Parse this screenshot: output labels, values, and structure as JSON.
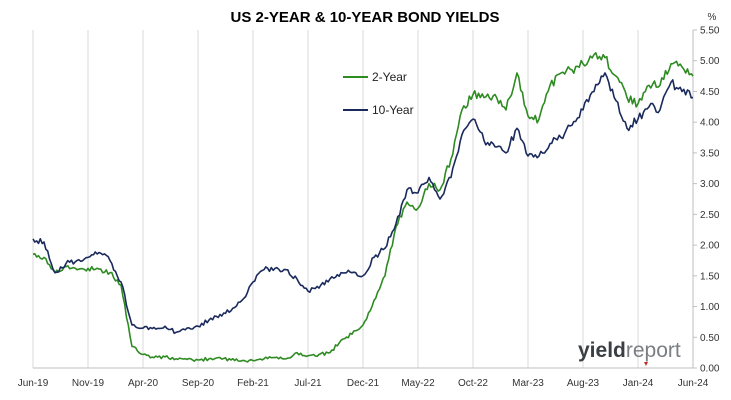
{
  "chart_data": {
    "type": "line",
    "title": "US 2-YEAR & 10-YEAR BOND YIELDS",
    "unit_label": "%",
    "xlabel": "",
    "ylabel": "",
    "y_axis_position": "right",
    "ylim": [
      0,
      5.5
    ],
    "yticks": [
      "0.00",
      "0.50",
      "1.00",
      "1.50",
      "2.00",
      "2.50",
      "3.00",
      "3.50",
      "4.00",
      "4.50",
      "5.00",
      "5.50"
    ],
    "xlim": [
      "2019-06",
      "2024-06"
    ],
    "xticks": [
      "Jun-19",
      "Nov-19",
      "Apr-20",
      "Sep-20",
      "Feb-21",
      "Jul-21",
      "Dec-21",
      "May-22",
      "Oct-22",
      "Mar-23",
      "Aug-23",
      "Jan-24",
      "Jun-24"
    ],
    "grid": "vertical",
    "legend_position": "top-center",
    "series": [
      {
        "name": "2-Year",
        "color": "#2e8b22",
        "x": [
          "2019-06",
          "2019-07",
          "2019-08",
          "2019-09",
          "2019-10",
          "2019-11",
          "2019-12",
          "2020-01",
          "2020-02",
          "2020-03",
          "2020-04",
          "2020-05",
          "2020-06",
          "2020-07",
          "2020-08",
          "2020-09",
          "2020-10",
          "2020-11",
          "2020-12",
          "2021-01",
          "2021-02",
          "2021-03",
          "2021-04",
          "2021-05",
          "2021-06",
          "2021-07",
          "2021-08",
          "2021-09",
          "2021-10",
          "2021-11",
          "2021-12",
          "2022-01",
          "2022-02",
          "2022-03",
          "2022-04",
          "2022-05",
          "2022-06",
          "2022-07",
          "2022-08",
          "2022-09",
          "2022-10",
          "2022-11",
          "2022-12",
          "2023-01",
          "2023-02",
          "2023-03",
          "2023-04",
          "2023-05",
          "2023-06",
          "2023-07",
          "2023-08",
          "2023-09",
          "2023-10",
          "2023-11",
          "2023-12",
          "2024-01",
          "2024-02",
          "2024-03",
          "2024-04",
          "2024-05",
          "2024-06"
        ],
        "values": [
          1.85,
          1.8,
          1.55,
          1.65,
          1.6,
          1.62,
          1.61,
          1.55,
          1.35,
          0.35,
          0.22,
          0.17,
          0.18,
          0.15,
          0.14,
          0.13,
          0.15,
          0.17,
          0.13,
          0.12,
          0.12,
          0.15,
          0.17,
          0.15,
          0.25,
          0.2,
          0.22,
          0.25,
          0.45,
          0.55,
          0.7,
          1.1,
          1.5,
          2.3,
          2.7,
          2.6,
          3.0,
          2.9,
          3.4,
          4.2,
          4.45,
          4.4,
          4.45,
          4.2,
          4.8,
          4.1,
          4.05,
          4.6,
          4.8,
          4.85,
          4.95,
          5.1,
          5.05,
          4.75,
          4.4,
          4.3,
          4.6,
          4.6,
          4.95,
          4.9,
          4.75
        ]
      },
      {
        "name": "10-Year",
        "color": "#1a2a5c",
        "x": [
          "2019-06",
          "2019-07",
          "2019-08",
          "2019-09",
          "2019-10",
          "2019-11",
          "2019-12",
          "2020-01",
          "2020-02",
          "2020-03",
          "2020-04",
          "2020-05",
          "2020-06",
          "2020-07",
          "2020-08",
          "2020-09",
          "2020-10",
          "2020-11",
          "2020-12",
          "2021-01",
          "2021-02",
          "2021-03",
          "2021-04",
          "2021-05",
          "2021-06",
          "2021-07",
          "2021-08",
          "2021-09",
          "2021-10",
          "2021-11",
          "2021-12",
          "2022-01",
          "2022-02",
          "2022-03",
          "2022-04",
          "2022-05",
          "2022-06",
          "2022-07",
          "2022-08",
          "2022-09",
          "2022-10",
          "2022-11",
          "2022-12",
          "2023-01",
          "2023-02",
          "2023-03",
          "2023-04",
          "2023-05",
          "2023-06",
          "2023-07",
          "2023-08",
          "2023-09",
          "2023-10",
          "2023-11",
          "2023-12",
          "2024-01",
          "2024-02",
          "2024-03",
          "2024-04",
          "2024-05",
          "2024-06"
        ],
        "values": [
          2.1,
          2.05,
          1.55,
          1.7,
          1.75,
          1.8,
          1.88,
          1.75,
          1.4,
          0.7,
          0.65,
          0.66,
          0.68,
          0.58,
          0.65,
          0.68,
          0.78,
          0.87,
          0.93,
          1.1,
          1.4,
          1.6,
          1.62,
          1.6,
          1.45,
          1.25,
          1.3,
          1.45,
          1.55,
          1.55,
          1.5,
          1.8,
          1.95,
          2.35,
          2.9,
          2.85,
          3.1,
          2.75,
          3.1,
          3.8,
          4.05,
          3.7,
          3.6,
          3.5,
          3.9,
          3.45,
          3.45,
          3.65,
          3.75,
          3.95,
          4.2,
          4.5,
          4.8,
          4.35,
          3.9,
          4.05,
          4.25,
          4.2,
          4.65,
          4.5,
          4.4
        ]
      }
    ]
  },
  "watermark": {
    "brand_bold": "yield",
    "brand_light": "report"
  }
}
